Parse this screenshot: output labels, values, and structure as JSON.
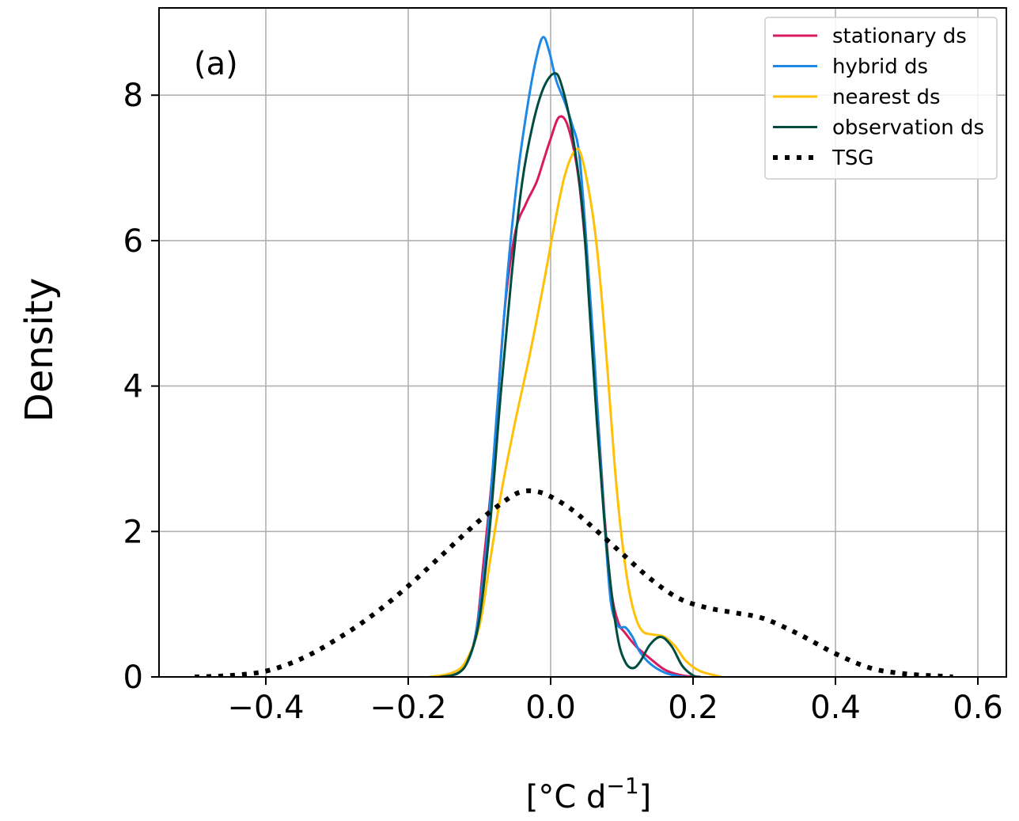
{
  "chart_data": {
    "type": "line",
    "panel_label": "(a)",
    "xlabel": "[°C d",
    "xlabel_exponent": "−1",
    "xlabel_close": "]",
    "ylabel": "Density",
    "xlim": [
      -0.55,
      0.64
    ],
    "ylim": [
      0,
      9.2
    ],
    "xticks": [
      {
        "value": -0.4,
        "label": "−0.4"
      },
      {
        "value": -0.2,
        "label": "−0.2"
      },
      {
        "value": 0.0,
        "label": "0.0"
      },
      {
        "value": 0.2,
        "label": "0.2"
      },
      {
        "value": 0.4,
        "label": "0.4"
      },
      {
        "value": 0.6,
        "label": "0.6"
      }
    ],
    "yticks": [
      {
        "value": 0,
        "label": "0"
      },
      {
        "value": 2,
        "label": "2"
      },
      {
        "value": 4,
        "label": "4"
      },
      {
        "value": 6,
        "label": "6"
      },
      {
        "value": 8,
        "label": "8"
      }
    ],
    "grid": true,
    "legend_position": "top-right",
    "series": [
      {
        "name": "stationary ds",
        "color": "#d81b60",
        "style": "solid",
        "points": [
          [
            -0.165,
            0
          ],
          [
            -0.14,
            0.03
          ],
          [
            -0.12,
            0.15
          ],
          [
            -0.105,
            0.6
          ],
          [
            -0.095,
            1.5
          ],
          [
            -0.08,
            3.0
          ],
          [
            -0.065,
            5.0
          ],
          [
            -0.05,
            6.1
          ],
          [
            -0.035,
            6.5
          ],
          [
            -0.02,
            6.8
          ],
          [
            -0.01,
            7.1
          ],
          [
            0.0,
            7.4
          ],
          [
            0.012,
            7.7
          ],
          [
            0.025,
            7.55
          ],
          [
            0.04,
            6.8
          ],
          [
            0.055,
            5.2
          ],
          [
            0.065,
            3.8
          ],
          [
            0.075,
            2.3
          ],
          [
            0.085,
            1.2
          ],
          [
            0.095,
            0.75
          ],
          [
            0.105,
            0.6
          ],
          [
            0.12,
            0.42
          ],
          [
            0.14,
            0.25
          ],
          [
            0.16,
            0.1
          ],
          [
            0.18,
            0.03
          ],
          [
            0.2,
            0
          ]
        ]
      },
      {
        "name": "hybrid ds",
        "color": "#1e88e5",
        "style": "solid",
        "points": [
          [
            -0.165,
            0
          ],
          [
            -0.14,
            0.03
          ],
          [
            -0.12,
            0.15
          ],
          [
            -0.105,
            0.6
          ],
          [
            -0.09,
            1.8
          ],
          [
            -0.075,
            3.7
          ],
          [
            -0.06,
            5.6
          ],
          [
            -0.045,
            7.0
          ],
          [
            -0.03,
            8.0
          ],
          [
            -0.018,
            8.6
          ],
          [
            -0.01,
            8.8
          ],
          [
            -0.002,
            8.6
          ],
          [
            0.008,
            8.2
          ],
          [
            0.02,
            7.9
          ],
          [
            0.03,
            7.6
          ],
          [
            0.04,
            7.2
          ],
          [
            0.05,
            6.0
          ],
          [
            0.06,
            4.6
          ],
          [
            0.07,
            3.0
          ],
          [
            0.078,
            1.8
          ],
          [
            0.085,
            1.0
          ],
          [
            0.095,
            0.7
          ],
          [
            0.105,
            0.68
          ],
          [
            0.115,
            0.55
          ],
          [
            0.125,
            0.35
          ],
          [
            0.14,
            0.18
          ],
          [
            0.16,
            0.06
          ],
          [
            0.18,
            0.01
          ],
          [
            0.19,
            0
          ]
        ]
      },
      {
        "name": "nearest ds",
        "color": "#ffc107",
        "style": "solid",
        "points": [
          [
            -0.17,
            0
          ],
          [
            -0.14,
            0.05
          ],
          [
            -0.12,
            0.2
          ],
          [
            -0.1,
            0.7
          ],
          [
            -0.085,
            1.6
          ],
          [
            -0.07,
            2.5
          ],
          [
            -0.05,
            3.5
          ],
          [
            -0.03,
            4.4
          ],
          [
            -0.01,
            5.4
          ],
          [
            0.005,
            6.2
          ],
          [
            0.02,
            6.9
          ],
          [
            0.035,
            7.25
          ],
          [
            0.045,
            7.1
          ],
          [
            0.06,
            6.3
          ],
          [
            0.07,
            5.4
          ],
          [
            0.08,
            4.2
          ],
          [
            0.09,
            2.9
          ],
          [
            0.1,
            1.9
          ],
          [
            0.11,
            1.2
          ],
          [
            0.12,
            0.8
          ],
          [
            0.13,
            0.62
          ],
          [
            0.145,
            0.58
          ],
          [
            0.16,
            0.55
          ],
          [
            0.175,
            0.42
          ],
          [
            0.19,
            0.22
          ],
          [
            0.21,
            0.08
          ],
          [
            0.24,
            0
          ]
        ]
      },
      {
        "name": "observation ds",
        "color": "#004d40",
        "style": "solid",
        "points": [
          [
            -0.155,
            0
          ],
          [
            -0.13,
            0.05
          ],
          [
            -0.115,
            0.25
          ],
          [
            -0.1,
            0.8
          ],
          [
            -0.085,
            2.1
          ],
          [
            -0.07,
            3.9
          ],
          [
            -0.055,
            5.5
          ],
          [
            -0.04,
            6.8
          ],
          [
            -0.025,
            7.6
          ],
          [
            -0.01,
            8.1
          ],
          [
            0.005,
            8.3
          ],
          [
            0.015,
            8.15
          ],
          [
            0.03,
            7.5
          ],
          [
            0.045,
            6.4
          ],
          [
            0.055,
            5.0
          ],
          [
            0.065,
            3.5
          ],
          [
            0.075,
            2.2
          ],
          [
            0.085,
            1.2
          ],
          [
            0.095,
            0.5
          ],
          [
            0.105,
            0.2
          ],
          [
            0.115,
            0.12
          ],
          [
            0.125,
            0.2
          ],
          [
            0.14,
            0.45
          ],
          [
            0.155,
            0.55
          ],
          [
            0.17,
            0.42
          ],
          [
            0.185,
            0.15
          ],
          [
            0.2,
            0.02
          ],
          [
            0.21,
            0
          ]
        ]
      },
      {
        "name": "TSG",
        "color": "#000000",
        "style": "dotted",
        "points": [
          [
            -0.5,
            0
          ],
          [
            -0.45,
            0.02
          ],
          [
            -0.4,
            0.08
          ],
          [
            -0.35,
            0.25
          ],
          [
            -0.3,
            0.52
          ],
          [
            -0.25,
            0.85
          ],
          [
            -0.2,
            1.25
          ],
          [
            -0.15,
            1.7
          ],
          [
            -0.1,
            2.15
          ],
          [
            -0.06,
            2.45
          ],
          [
            -0.04,
            2.55
          ],
          [
            -0.02,
            2.55
          ],
          [
            0.0,
            2.48
          ],
          [
            0.03,
            2.3
          ],
          [
            0.06,
            2.05
          ],
          [
            0.1,
            1.7
          ],
          [
            0.14,
            1.35
          ],
          [
            0.18,
            1.08
          ],
          [
            0.22,
            0.95
          ],
          [
            0.26,
            0.88
          ],
          [
            0.3,
            0.8
          ],
          [
            0.35,
            0.58
          ],
          [
            0.4,
            0.32
          ],
          [
            0.45,
            0.12
          ],
          [
            0.5,
            0.04
          ],
          [
            0.55,
            0.01
          ],
          [
            0.565,
            0
          ]
        ]
      }
    ]
  }
}
